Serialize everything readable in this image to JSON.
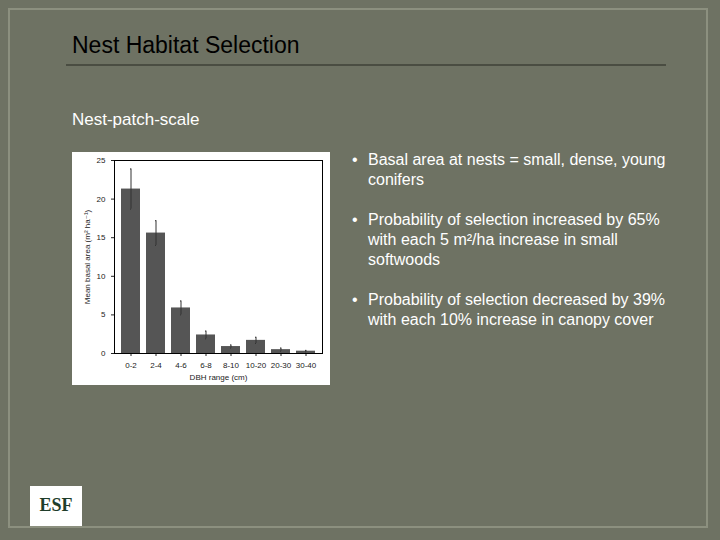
{
  "slide": {
    "title": "Nest Habitat Selection",
    "subtitle": "Nest-patch-scale",
    "bullets": [
      "Basal area at nests = small, dense, young conifers",
      "Probability of selection increased by 65% with each 5 m²/ha increase in small softwoods",
      "Probability of selection decreased by 39% with each 10% increase in canopy cover"
    ],
    "logo": "ESF"
  },
  "chart_data": {
    "type": "bar",
    "xlabel": "DBH range (cm)",
    "ylabel": "Mean basal area (m² ha⁻¹)",
    "categories": [
      "0-2",
      "2-4",
      "4-6",
      "6-8",
      "8-10",
      "10-20",
      "20-30",
      "30-40"
    ],
    "values": [
      21.3,
      15.6,
      5.9,
      2.4,
      0.9,
      1.7,
      0.5,
      0.3
    ],
    "errors": [
      2.6,
      1.6,
      0.9,
      0.5,
      0.2,
      0.4,
      0.2,
      0.1
    ],
    "color": "#555555",
    "ylim": [
      0,
      25
    ],
    "yticks": [
      0,
      5,
      10,
      15,
      20,
      25
    ],
    "grid": false
  }
}
